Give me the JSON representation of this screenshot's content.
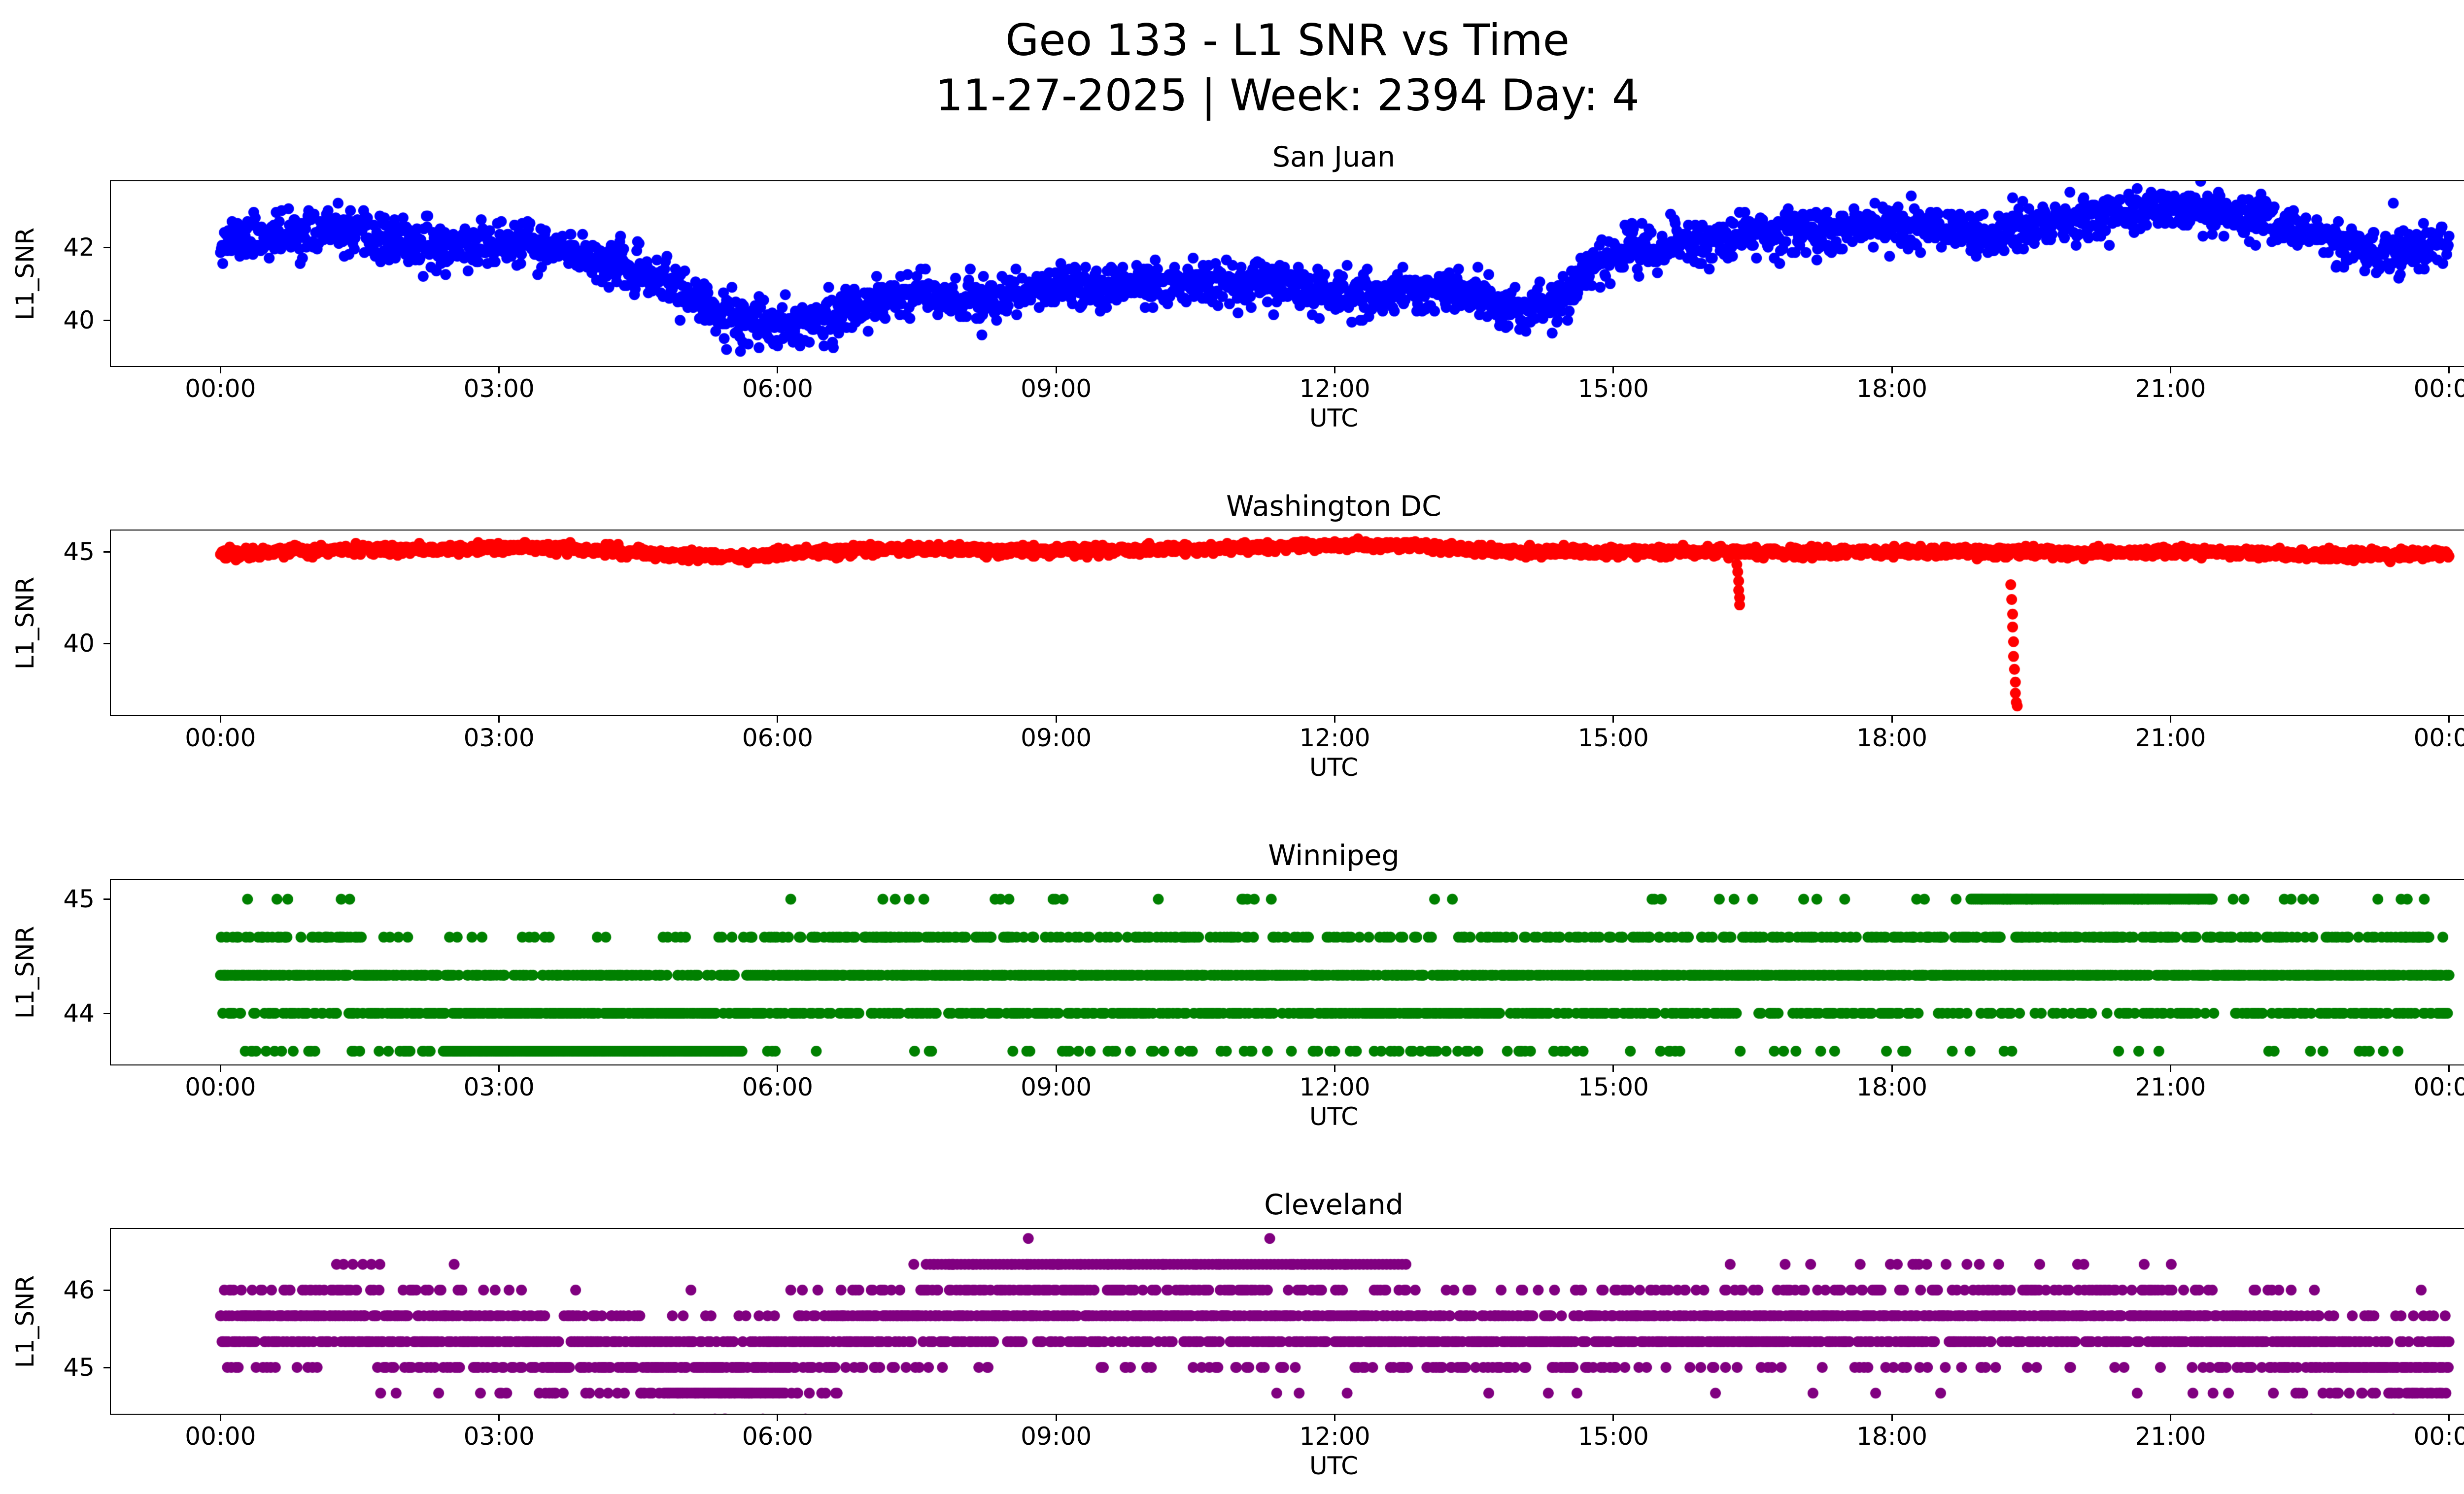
{
  "figure": {
    "title_line1": "Geo 133 - L1 SNR vs Time",
    "title_line2": "11-27-2025 | Week: 2394 Day: 4"
  },
  "chart_data": [
    {
      "type": "scatter",
      "station": "San Juan",
      "color": "#0000ff",
      "xlabel": "UTC",
      "ylabel": "L1_SNR",
      "xlim": [
        -1.18,
        25.18
      ],
      "ylim": [
        38.75,
        43.8
      ],
      "yticks": [
        40,
        42
      ],
      "xticks_hours": [
        0,
        3,
        6,
        9,
        12,
        15,
        18,
        21,
        24
      ],
      "xtick_labels": [
        "00:00",
        "03:00",
        "06:00",
        "09:00",
        "12:00",
        "15:00",
        "18:00",
        "21:00",
        "00:00"
      ],
      "sample_minutes": 0.5,
      "noise_sigma": 0.3,
      "quantize": 0.05,
      "marker_radius": 11,
      "seed": 11,
      "trend": [
        [
          0,
          42.2
        ],
        [
          0.7,
          42.35
        ],
        [
          1.2,
          42.45
        ],
        [
          1.7,
          42.2
        ],
        [
          2.2,
          42.0
        ],
        [
          2.7,
          42.05
        ],
        [
          3.2,
          42.1
        ],
        [
          3.6,
          41.9
        ],
        [
          4.0,
          41.75
        ],
        [
          4.4,
          41.35
        ],
        [
          4.8,
          41.1
        ],
        [
          5.2,
          40.4
        ],
        [
          5.6,
          39.95
        ],
        [
          6.0,
          39.9
        ],
        [
          6.4,
          40.0
        ],
        [
          6.8,
          40.3
        ],
        [
          7.2,
          40.75
        ],
        [
          7.6,
          40.8
        ],
        [
          8.0,
          40.55
        ],
        [
          8.4,
          40.65
        ],
        [
          8.8,
          40.85
        ],
        [
          9.2,
          41.0
        ],
        [
          9.6,
          40.9
        ],
        [
          10.0,
          41.05
        ],
        [
          10.4,
          41.0
        ],
        [
          10.8,
          40.9
        ],
        [
          11.2,
          41.05
        ],
        [
          11.6,
          40.95
        ],
        [
          12.0,
          40.75
        ],
        [
          12.4,
          40.7
        ],
        [
          12.8,
          40.85
        ],
        [
          13.2,
          40.8
        ],
        [
          13.6,
          40.6
        ],
        [
          14.0,
          40.25
        ],
        [
          14.4,
          40.4
        ],
        [
          14.8,
          41.5
        ],
        [
          15.2,
          41.95
        ],
        [
          15.6,
          42.05
        ],
        [
          16.0,
          42.2
        ],
        [
          16.5,
          42.35
        ],
        [
          17.0,
          42.45
        ],
        [
          17.5,
          42.5
        ],
        [
          18.0,
          42.6
        ],
        [
          18.5,
          42.45
        ],
        [
          19.0,
          42.3
        ],
        [
          19.5,
          42.6
        ],
        [
          20.0,
          42.75
        ],
        [
          20.5,
          42.9
        ],
        [
          21.0,
          43.0
        ],
        [
          21.5,
          42.95
        ],
        [
          22.0,
          42.85
        ],
        [
          22.3,
          42.6
        ],
        [
          22.7,
          42.2
        ],
        [
          23.0,
          42.0
        ],
        [
          23.4,
          41.9
        ],
        [
          23.7,
          42.0
        ],
        [
          24,
          42.15
        ]
      ],
      "extra_points": [
        [
          5.45,
          39.2
        ],
        [
          5.6,
          39.15
        ],
        [
          5.8,
          39.25
        ],
        [
          6.5,
          39.3
        ],
        [
          6.6,
          39.25
        ],
        [
          8.2,
          39.6
        ],
        [
          19.3,
          43.35
        ],
        [
          20.9,
          43.45
        ],
        [
          21.4,
          43.4
        ],
        [
          23.4,
          43.2
        ]
      ]
    },
    {
      "type": "scatter",
      "station": "Washington DC",
      "color": "#ff0000",
      "xlabel": "UTC",
      "ylabel": "L1_SNR",
      "xlim": [
        -1.18,
        25.18
      ],
      "ylim": [
        36.1,
        46.15
      ],
      "yticks": [
        40,
        45
      ],
      "xticks_hours": [
        0,
        3,
        6,
        9,
        12,
        15,
        18,
        21,
        24
      ],
      "xtick_labels": [
        "00:00",
        "03:00",
        "06:00",
        "09:00",
        "12:00",
        "15:00",
        "18:00",
        "21:00",
        "00:00"
      ],
      "sample_minutes": 0.5,
      "noise_sigma": 0.13,
      "quantize": 0.05,
      "marker_radius": 11,
      "seed": 22,
      "trend": [
        [
          0,
          44.85
        ],
        [
          0.5,
          45.0
        ],
        [
          1,
          45.05
        ],
        [
          1.5,
          45.1
        ],
        [
          2,
          45.1
        ],
        [
          2.5,
          45.15
        ],
        [
          3,
          45.2
        ],
        [
          3.5,
          45.2
        ],
        [
          4,
          45.1
        ],
        [
          4.5,
          44.95
        ],
        [
          5,
          44.8
        ],
        [
          5.5,
          44.75
        ],
        [
          6,
          44.85
        ],
        [
          6.5,
          45.0
        ],
        [
          7,
          45.1
        ],
        [
          7.5,
          45.15
        ],
        [
          8,
          45.1
        ],
        [
          8.5,
          45.05
        ],
        [
          9,
          45.05
        ],
        [
          9.5,
          45.1
        ],
        [
          10,
          45.1
        ],
        [
          10.5,
          45.15
        ],
        [
          11,
          45.2
        ],
        [
          11.5,
          45.3
        ],
        [
          12,
          45.35
        ],
        [
          12.5,
          45.3
        ],
        [
          13,
          45.35
        ],
        [
          13.3,
          45.15
        ],
        [
          13.6,
          45.05
        ],
        [
          14,
          45.0
        ],
        [
          15,
          45.0
        ],
        [
          16,
          45.0
        ],
        [
          17,
          44.95
        ],
        [
          18,
          45.0
        ],
        [
          19,
          44.95
        ],
        [
          20,
          44.95
        ],
        [
          21,
          45.0
        ],
        [
          21.5,
          44.95
        ],
        [
          22,
          44.9
        ],
        [
          22.5,
          44.85
        ],
        [
          23,
          44.8
        ],
        [
          23.5,
          44.8
        ],
        [
          24,
          44.85
        ]
      ],
      "extra_points": [
        [
          16.33,
          44.3
        ],
        [
          16.34,
          43.9
        ],
        [
          16.35,
          43.4
        ],
        [
          16.35,
          42.9
        ],
        [
          16.36,
          42.5
        ],
        [
          16.36,
          42.1
        ],
        [
          19.28,
          43.2
        ],
        [
          19.29,
          42.4
        ],
        [
          19.3,
          41.6
        ],
        [
          19.3,
          40.9
        ],
        [
          19.31,
          40.1
        ],
        [
          19.31,
          39.3
        ],
        [
          19.32,
          38.6
        ],
        [
          19.33,
          37.9
        ],
        [
          19.33,
          37.3
        ],
        [
          19.34,
          36.8
        ],
        [
          19.35,
          36.6
        ]
      ]
    },
    {
      "type": "scatter",
      "station": "Winnipeg",
      "color": "#008000",
      "xlabel": "UTC",
      "ylabel": "L1_SNR",
      "xlim": [
        -1.18,
        25.18
      ],
      "ylim": [
        43.55,
        45.17
      ],
      "yticks": [
        44,
        45
      ],
      "xticks_hours": [
        0,
        3,
        6,
        9,
        12,
        15,
        18,
        21,
        24
      ],
      "xtick_labels": [
        "00:00",
        "03:00",
        "06:00",
        "09:00",
        "12:00",
        "15:00",
        "18:00",
        "21:00",
        "00:00"
      ],
      "sample_minutes": 0.5,
      "noise_sigma": 0.27,
      "quantize": 0.33333,
      "marker_radius": 11,
      "seed": 33,
      "trend": [
        [
          0,
          44.3
        ],
        [
          1,
          44.3
        ],
        [
          1.8,
          44.2
        ],
        [
          2.4,
          44.1
        ],
        [
          3,
          44.05
        ],
        [
          3.8,
          44.0
        ],
        [
          4.5,
          44.05
        ],
        [
          5.2,
          44.05
        ],
        [
          5.8,
          44.15
        ],
        [
          6.2,
          44.3
        ],
        [
          7,
          44.35
        ],
        [
          8,
          44.35
        ],
        [
          8.8,
          44.3
        ],
        [
          9.5,
          44.25
        ],
        [
          10.5,
          44.3
        ],
        [
          11.2,
          44.35
        ],
        [
          12,
          44.2
        ],
        [
          12.8,
          44.1
        ],
        [
          13.5,
          44.15
        ],
        [
          14.2,
          44.2
        ],
        [
          15,
          44.3
        ],
        [
          16,
          44.3
        ],
        [
          17,
          44.35
        ],
        [
          18,
          44.3
        ],
        [
          18.8,
          44.4
        ],
        [
          19.5,
          44.45
        ],
        [
          20.5,
          44.45
        ],
        [
          21.3,
          44.4
        ],
        [
          22,
          44.3
        ],
        [
          23,
          44.3
        ],
        [
          24,
          44.35
        ]
      ],
      "extra_points": [
        [
          9.8,
          43.667
        ],
        [
          12.5,
          43.667
        ],
        [
          12.6,
          43.667
        ],
        [
          13.1,
          43.667
        ],
        [
          13.2,
          43.667
        ],
        [
          14.6,
          43.667
        ]
      ],
      "extra_bands": [
        {
          "x0": 18.85,
          "x1": 21.45,
          "y": 45.0,
          "step_minutes": 1.2
        },
        {
          "x0": 2.4,
          "x1": 5.6,
          "y": 43.667,
          "step_minutes": 1.2
        }
      ]
    },
    {
      "type": "scatter",
      "station": "Cleveland",
      "color": "#800080",
      "xlabel": "UTC",
      "ylabel": "L1_SNR",
      "xlim": [
        -1.18,
        25.18
      ],
      "ylim": [
        44.4,
        46.79
      ],
      "yticks": [
        45,
        46
      ],
      "xticks_hours": [
        0,
        3,
        6,
        9,
        12,
        15,
        18,
        21,
        24
      ],
      "xtick_labels": [
        "00:00",
        "03:00",
        "06:00",
        "09:00",
        "12:00",
        "15:00",
        "18:00",
        "21:00",
        "00:00"
      ],
      "sample_minutes": 0.5,
      "noise_sigma": 0.3,
      "quantize": 0.33333,
      "marker_radius": 11,
      "seed": 44,
      "trend": [
        [
          0,
          45.45
        ],
        [
          0.7,
          45.55
        ],
        [
          1.3,
          45.6
        ],
        [
          2,
          45.45
        ],
        [
          2.7,
          45.35
        ],
        [
          3.3,
          45.3
        ],
        [
          4,
          45.25
        ],
        [
          4.6,
          45.1
        ],
        [
          5.2,
          45.0
        ],
        [
          5.7,
          44.95
        ],
        [
          6.2,
          45.2
        ],
        [
          6.8,
          45.45
        ],
        [
          7.4,
          45.6
        ],
        [
          8,
          45.65
        ],
        [
          8.6,
          45.7
        ],
        [
          9.2,
          45.65
        ],
        [
          10,
          45.6
        ],
        [
          10.7,
          45.65
        ],
        [
          11.4,
          45.6
        ],
        [
          12,
          45.55
        ],
        [
          12.6,
          45.45
        ],
        [
          13.2,
          45.4
        ],
        [
          14,
          45.35
        ],
        [
          14.8,
          45.45
        ],
        [
          15.5,
          45.5
        ],
        [
          16.2,
          45.5
        ],
        [
          17,
          45.55
        ],
        [
          17.8,
          45.6
        ],
        [
          18.6,
          45.6
        ],
        [
          19.4,
          45.65
        ],
        [
          20.2,
          45.6
        ],
        [
          21,
          45.55
        ],
        [
          21.8,
          45.45
        ],
        [
          22.4,
          45.35
        ],
        [
          23,
          45.1
        ],
        [
          23.5,
          45.0
        ],
        [
          24,
          45.1
        ]
      ],
      "extra_points": [
        [
          8.7,
          46.667
        ],
        [
          11.3,
          46.667
        ],
        [
          23.7,
          44.667
        ],
        [
          23.8,
          44.667
        ],
        [
          23.9,
          44.667
        ]
      ],
      "extra_bands": [
        {
          "x0": 4.8,
          "x1": 6.1,
          "y": 44.667,
          "step_minutes": 1.5
        },
        {
          "x0": 7.6,
          "x1": 12.8,
          "y": 46.333,
          "step_minutes": 2.5
        }
      ]
    }
  ]
}
